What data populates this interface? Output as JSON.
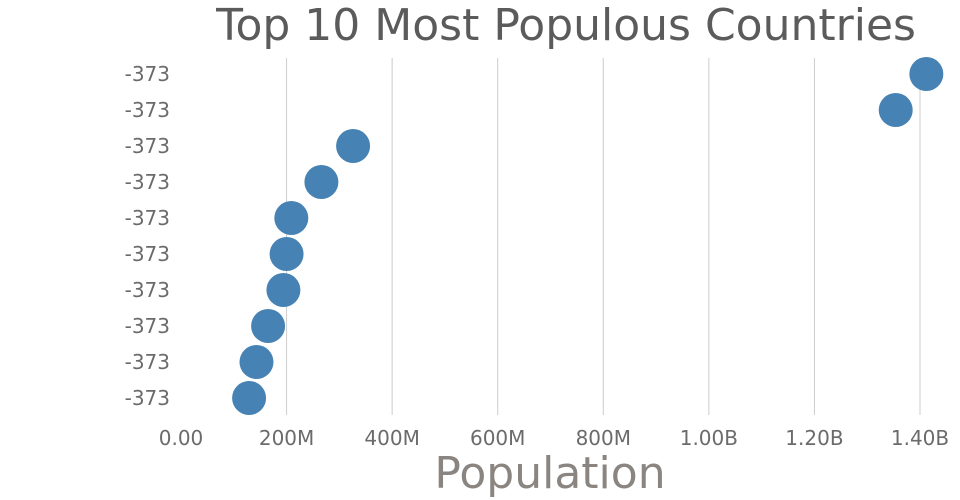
{
  "chart_data": {
    "type": "scatter",
    "title": "Top 10 Most Populous Countries",
    "xlabel": "Population",
    "ylabel": "",
    "xlim": [
      0,
      1400000000
    ],
    "x_ticks": [
      {
        "value": 0,
        "label": "0.00"
      },
      {
        "value": 200000000,
        "label": "200M"
      },
      {
        "value": 400000000,
        "label": "400M"
      },
      {
        "value": 600000000,
        "label": "600M"
      },
      {
        "value": 800000000,
        "label": "800M"
      },
      {
        "value": 1000000000,
        "label": "1.00B"
      },
      {
        "value": 1200000000,
        "label": "1.20B"
      },
      {
        "value": 1400000000,
        "label": "1.40B"
      }
    ],
    "y_tick_labels": [
      "-373",
      "-373",
      "-373",
      "-373",
      "-373",
      "-373",
      "-373",
      "-373",
      "-373",
      "-373"
    ],
    "grid": "vertical",
    "color": "#4682b4",
    "x": [
      1412000000,
      1354000000,
      326000000,
      266000000,
      209000000,
      200000000,
      194000000,
      165000000,
      143000000,
      129000000
    ]
  }
}
